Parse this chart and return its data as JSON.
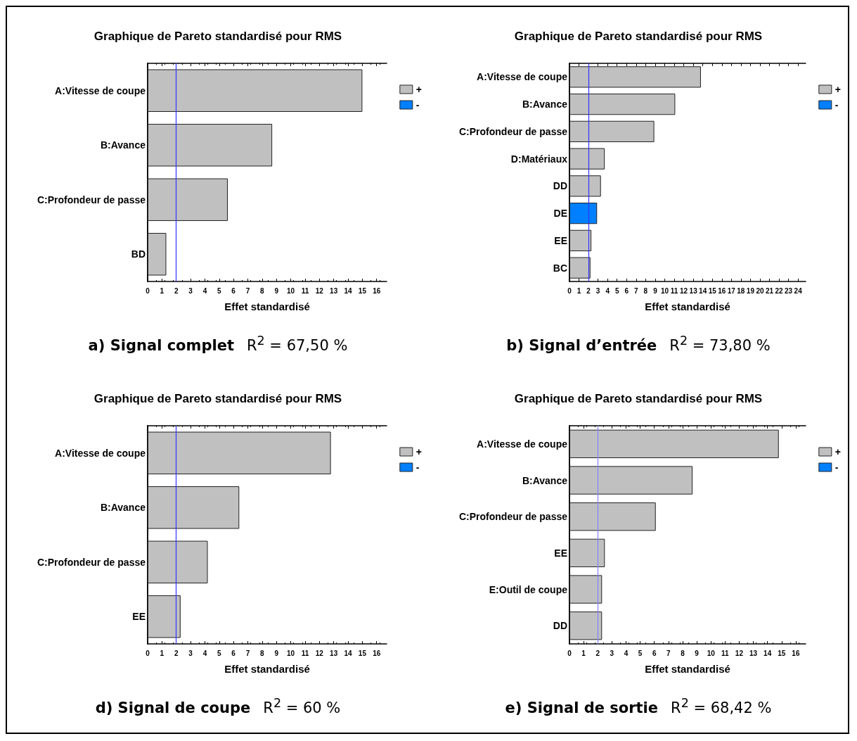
{
  "chart_data": [
    {
      "type": "bar",
      "orientation": "horizontal",
      "title": "Graphique de Pareto standardisé pour RMS",
      "xlabel": "Effet standardisé",
      "categories": [
        "A:Vitesse de coupe",
        "B:Avance",
        "C:Profondeur de passe",
        "BD"
      ],
      "series": [
        {
          "name": "+",
          "color": "#c0c0c0",
          "values": [
            15.0,
            8.7,
            5.6,
            1.3
          ]
        },
        {
          "name": "-",
          "color": "#0080ff",
          "values": [
            null,
            null,
            null,
            null
          ]
        }
      ],
      "xlim": [
        0,
        16.7
      ],
      "xticks": [
        0,
        1,
        2,
        3,
        4,
        5,
        6,
        7,
        8,
        9,
        10,
        11,
        12,
        13,
        14,
        15,
        16
      ],
      "ref_lines": [
        {
          "axis": "x",
          "value": 2,
          "color": "#3333ff"
        }
      ],
      "legend": "top right",
      "grid": false,
      "annotations": [
        "a) Signal complet",
        "R$^{2}$ = 67,50 %"
      ]
    },
    {
      "type": "bar",
      "orientation": "horizontal",
      "title": "Graphique de Pareto standardisé pour RMS",
      "xlabel": "Effet standardisé",
      "categories": [
        "A:Vitesse de coupe",
        "B:Avance",
        "C:Profondeur de passe",
        "D:Matériaux",
        "DD",
        "DE",
        "EE",
        "BC"
      ],
      "series": [
        {
          "name": "+",
          "color": "#c0c0c0",
          "values": [
            13.8,
            11.1,
            8.9,
            3.7,
            3.3,
            null,
            2.3,
            2.2
          ]
        },
        {
          "name": "-",
          "color": "#0080ff",
          "values": [
            null,
            null,
            null,
            null,
            null,
            2.9,
            null,
            null
          ]
        }
      ],
      "xlim": [
        0,
        24.8
      ],
      "xticks": [
        0,
        1,
        2,
        3,
        4,
        5,
        6,
        7,
        8,
        9,
        10,
        11,
        12,
        13,
        14,
        15,
        16,
        17,
        18,
        19,
        20,
        21,
        22,
        23,
        24
      ],
      "ref_lines": [
        {
          "axis": "x",
          "value": 2,
          "color": "#3333ff"
        }
      ],
      "legend": "top right",
      "grid": false,
      "annotations": [
        "b) Signal d’entrée",
        "R$^{2}$ = 73,80 %"
      ]
    },
    {
      "type": "bar",
      "orientation": "horizontal",
      "title": "Graphique de Pareto standardisé pour RMS",
      "xlabel": "Effet standardisé",
      "categories": [
        "A:Vitesse de coupe",
        "B:Avance",
        "C:Profondeur de passe",
        "EE"
      ],
      "series": [
        {
          "name": "+",
          "color": "#c0c0c0",
          "values": [
            12.8,
            6.4,
            4.2,
            2.3
          ]
        },
        {
          "name": "-",
          "color": "#0080ff",
          "values": [
            null,
            null,
            null,
            null
          ]
        }
      ],
      "xlim": [
        0,
        16.7
      ],
      "xticks": [
        0,
        1,
        2,
        3,
        4,
        5,
        6,
        7,
        8,
        9,
        10,
        11,
        12,
        13,
        14,
        15,
        16
      ],
      "ref_lines": [
        {
          "axis": "x",
          "value": 2,
          "color": "#3333ff"
        }
      ],
      "legend": "top right",
      "grid": false,
      "annotations": [
        "d) Signal de coupe",
        "R$^{2}$ = 60 %"
      ]
    },
    {
      "type": "bar",
      "orientation": "horizontal",
      "title": "Graphique de Pareto standardisé pour RMS",
      "xlabel": "Effet standardisé",
      "categories": [
        "A:Vitesse de coupe",
        "B:Avance",
        "C:Profondeur de passe",
        "EE",
        "E:Outil de coupe",
        "DD"
      ],
      "series": [
        {
          "name": "+",
          "color": "#c0c0c0",
          "values": [
            14.8,
            8.7,
            6.1,
            2.5,
            2.3,
            2.3
          ]
        },
        {
          "name": "-",
          "color": "#0080ff",
          "values": [
            null,
            null,
            null,
            null,
            null,
            null
          ]
        }
      ],
      "xlim": [
        0,
        16.7
      ],
      "xticks": [
        0,
        1,
        2,
        3,
        4,
        5,
        6,
        7,
        8,
        9,
        10,
        11,
        12,
        13,
        14,
        15,
        16
      ],
      "ref_lines": [
        {
          "axis": "x",
          "value": 2,
          "color": "#8080ff"
        }
      ],
      "legend": "top right",
      "grid": false,
      "annotations": [
        "e) Signal de sortie",
        "R$^{2}$ = 68,42 %"
      ]
    }
  ]
}
